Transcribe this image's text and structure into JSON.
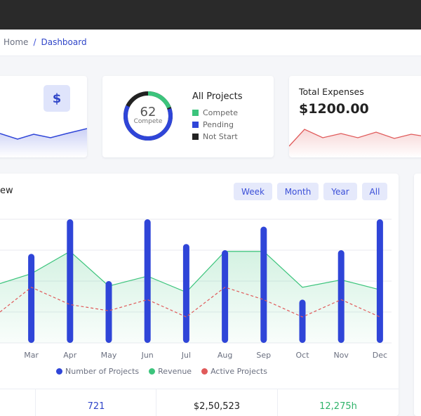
{
  "breadcrumb": {
    "home": "Home",
    "separator": "/",
    "current": "Dashboard"
  },
  "revenue_card": {
    "icon": "dollar-icon",
    "icon_glyph": "$"
  },
  "projects_card": {
    "title": "All Projects",
    "donut_value": "62",
    "donut_label": "Compete",
    "legend": [
      {
        "label": "Compete",
        "color": "#3cc47c"
      },
      {
        "label": "Pending",
        "color": "#2f45d8"
      },
      {
        "label": "Not Start",
        "color": "#222222"
      }
    ]
  },
  "expenses_card": {
    "title": "Total Expenses",
    "value": "$1200.00"
  },
  "overview": {
    "title": "ew",
    "filters": [
      {
        "label": "Week",
        "active": true
      },
      {
        "label": "Month",
        "active": false
      },
      {
        "label": "Year",
        "active": false
      },
      {
        "label": "All",
        "active": false
      }
    ]
  },
  "chart_data": {
    "type": "bar",
    "categories": [
      "Mar",
      "Apr",
      "May",
      "Jun",
      "Jul",
      "Aug",
      "Sep",
      "Oct",
      "Nov",
      "Dec"
    ],
    "series": [
      {
        "name": "Number of Projects",
        "type": "bar",
        "color": "#2f45d8",
        "values": [
          72,
          100,
          50,
          100,
          80,
          75,
          94,
          35,
          75,
          100
        ]
      },
      {
        "name": "Revenue",
        "type": "area",
        "color": "#3cc47c",
        "values": [
          56,
          74,
          46,
          54,
          41,
          74,
          74,
          45,
          51,
          43
        ]
      },
      {
        "name": "Active Projects",
        "type": "line-dashed",
        "color": "#e05a5a",
        "values": [
          45,
          31,
          26,
          35,
          21,
          45,
          35,
          21,
          35,
          21
        ]
      }
    ],
    "ylim": [
      0,
      100
    ],
    "grid": true,
    "legend_position": "bottom"
  },
  "stats": [
    {
      "value": "721",
      "color": "#2f45c8"
    },
    {
      "value": "$2,50,523",
      "color": "#222222"
    },
    {
      "value": "12,275h",
      "color": "#2fb36a"
    }
  ]
}
